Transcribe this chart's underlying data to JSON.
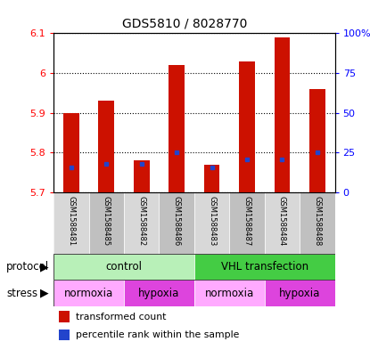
{
  "title": "GDS5810 / 8028770",
  "samples": [
    "GSM1588481",
    "GSM1588485",
    "GSM1588482",
    "GSM1588486",
    "GSM1588483",
    "GSM1588487",
    "GSM1588484",
    "GSM1588488"
  ],
  "bar_tops": [
    5.9,
    5.93,
    5.78,
    6.02,
    5.77,
    6.03,
    6.09,
    5.96
  ],
  "bar_base": 5.7,
  "blue_marker_y": [
    5.762,
    5.772,
    5.772,
    5.8,
    5.762,
    5.782,
    5.782,
    5.8
  ],
  "ylim": [
    5.7,
    6.1
  ],
  "bar_color": "#cc1100",
  "blue_color": "#2244cc",
  "protocol_groups": [
    {
      "label": "control",
      "start": 0,
      "end": 4,
      "color": "#b8f0b8"
    },
    {
      "label": "VHL transfection",
      "start": 4,
      "end": 8,
      "color": "#44cc44"
    }
  ],
  "stress_groups": [
    {
      "label": "normoxia",
      "start": 0,
      "end": 2,
      "color": "#ffaaff"
    },
    {
      "label": "hypoxia",
      "start": 2,
      "end": 4,
      "color": "#dd44dd"
    },
    {
      "label": "normoxia",
      "start": 4,
      "end": 6,
      "color": "#ffaaff"
    },
    {
      "label": "hypoxia",
      "start": 6,
      "end": 8,
      "color": "#dd44dd"
    }
  ],
  "legend_red_label": "transformed count",
  "legend_blue_label": "percentile rank within the sample",
  "protocol_label": "protocol",
  "stress_label": "stress",
  "left_yticks": [
    5.7,
    5.8,
    5.9,
    6.0,
    6.1
  ],
  "left_yticklabels": [
    "5.7",
    "5.8",
    "5.9",
    "6",
    "6.1"
  ],
  "right_yticks": [
    0,
    25,
    50,
    75,
    100
  ],
  "right_yticklabels": [
    "0",
    "25",
    "50",
    "75",
    "100%"
  ]
}
